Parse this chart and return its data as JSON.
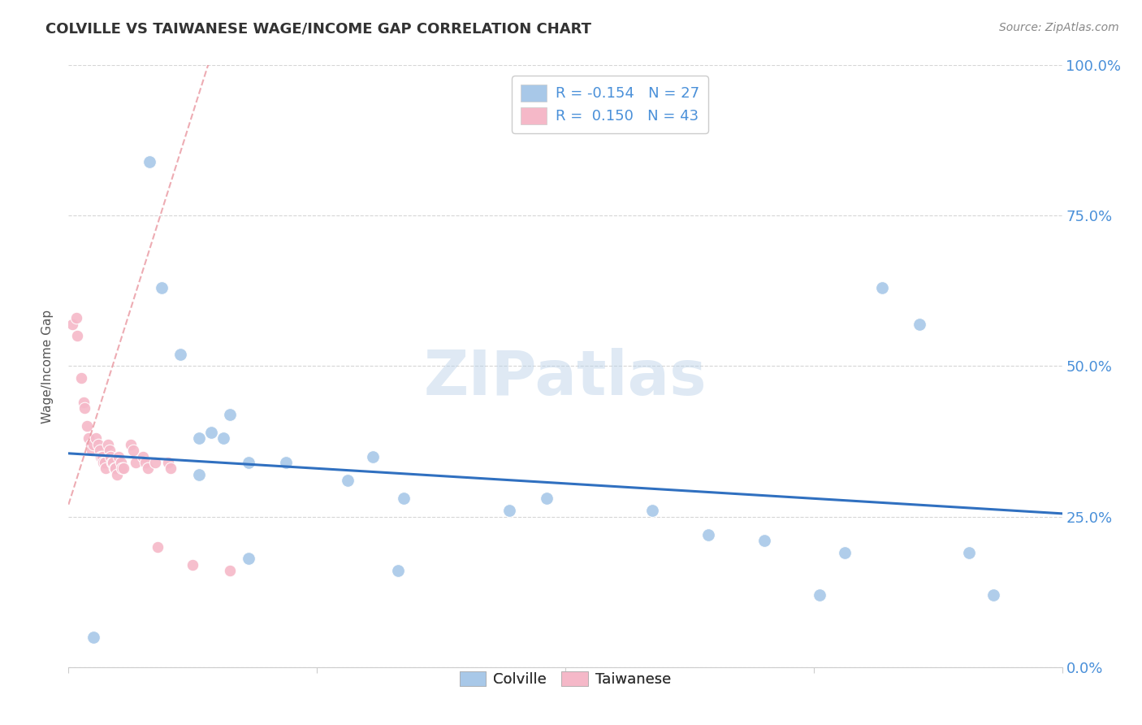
{
  "title": "COLVILLE VS TAIWANESE WAGE/INCOME GAP CORRELATION CHART",
  "source": "Source: ZipAtlas.com",
  "ylabel": "Wage/Income Gap",
  "xlim": [
    0.0,
    0.8
  ],
  "ylim": [
    0.0,
    1.0
  ],
  "xticks": [
    0.0,
    0.2,
    0.4,
    0.6,
    0.8
  ],
  "ytick_labels": [
    "0.0%",
    "25.0%",
    "50.0%",
    "75.0%",
    "100.0%"
  ],
  "yticks": [
    0.0,
    0.25,
    0.5,
    0.75,
    1.0
  ],
  "colville_color": "#a8c8e8",
  "taiwanese_color": "#f5b8c8",
  "colville_line_color": "#3070c0",
  "taiwanese_line_color": "#e8909a",
  "legend_R_colville": "-0.154",
  "legend_N_colville": "27",
  "legend_R_taiwanese": "0.150",
  "legend_N_taiwanese": "43",
  "colville_x": [
    0.02,
    0.065,
    0.075,
    0.09,
    0.105,
    0.125,
    0.13,
    0.145,
    0.105,
    0.115,
    0.175,
    0.225,
    0.27,
    0.245,
    0.355,
    0.385,
    0.47,
    0.515,
    0.56,
    0.625,
    0.655,
    0.685,
    0.725,
    0.745,
    0.605,
    0.145,
    0.265
  ],
  "colville_y": [
    0.05,
    0.84,
    0.63,
    0.52,
    0.38,
    0.38,
    0.42,
    0.34,
    0.32,
    0.39,
    0.34,
    0.31,
    0.28,
    0.35,
    0.26,
    0.28,
    0.26,
    0.22,
    0.21,
    0.19,
    0.63,
    0.57,
    0.19,
    0.12,
    0.12,
    0.18,
    0.16
  ],
  "taiwanese_x": [
    0.003,
    0.006,
    0.007,
    0.01,
    0.012,
    0.013,
    0.015,
    0.016,
    0.018,
    0.019,
    0.02,
    0.022,
    0.024,
    0.025,
    0.026,
    0.027,
    0.028,
    0.029,
    0.03,
    0.032,
    0.033,
    0.034,
    0.035,
    0.036,
    0.037,
    0.038,
    0.039,
    0.04,
    0.042,
    0.043,
    0.044,
    0.05,
    0.052,
    0.054,
    0.06,
    0.062,
    0.064,
    0.07,
    0.072,
    0.08,
    0.082,
    0.1,
    0.13
  ],
  "taiwanese_y": [
    0.57,
    0.58,
    0.55,
    0.48,
    0.44,
    0.43,
    0.4,
    0.38,
    0.37,
    0.36,
    0.37,
    0.38,
    0.37,
    0.36,
    0.35,
    0.35,
    0.34,
    0.34,
    0.33,
    0.37,
    0.36,
    0.35,
    0.34,
    0.34,
    0.33,
    0.33,
    0.32,
    0.35,
    0.34,
    0.33,
    0.33,
    0.37,
    0.36,
    0.34,
    0.35,
    0.34,
    0.33,
    0.34,
    0.2,
    0.34,
    0.33,
    0.17,
    0.16
  ],
  "colville_trend_x": [
    0.0,
    0.8
  ],
  "colville_trend_y": [
    0.355,
    0.255
  ],
  "taiwanese_trend_slope": 6.5,
  "taiwanese_trend_intercept": 0.27,
  "background_color": "#ffffff",
  "watermark_text": "ZIPatlas",
  "title_fontsize": 13,
  "tick_label_color": "#4a90d9",
  "source_color": "#888888",
  "legend_text_color": "#4a90d9"
}
